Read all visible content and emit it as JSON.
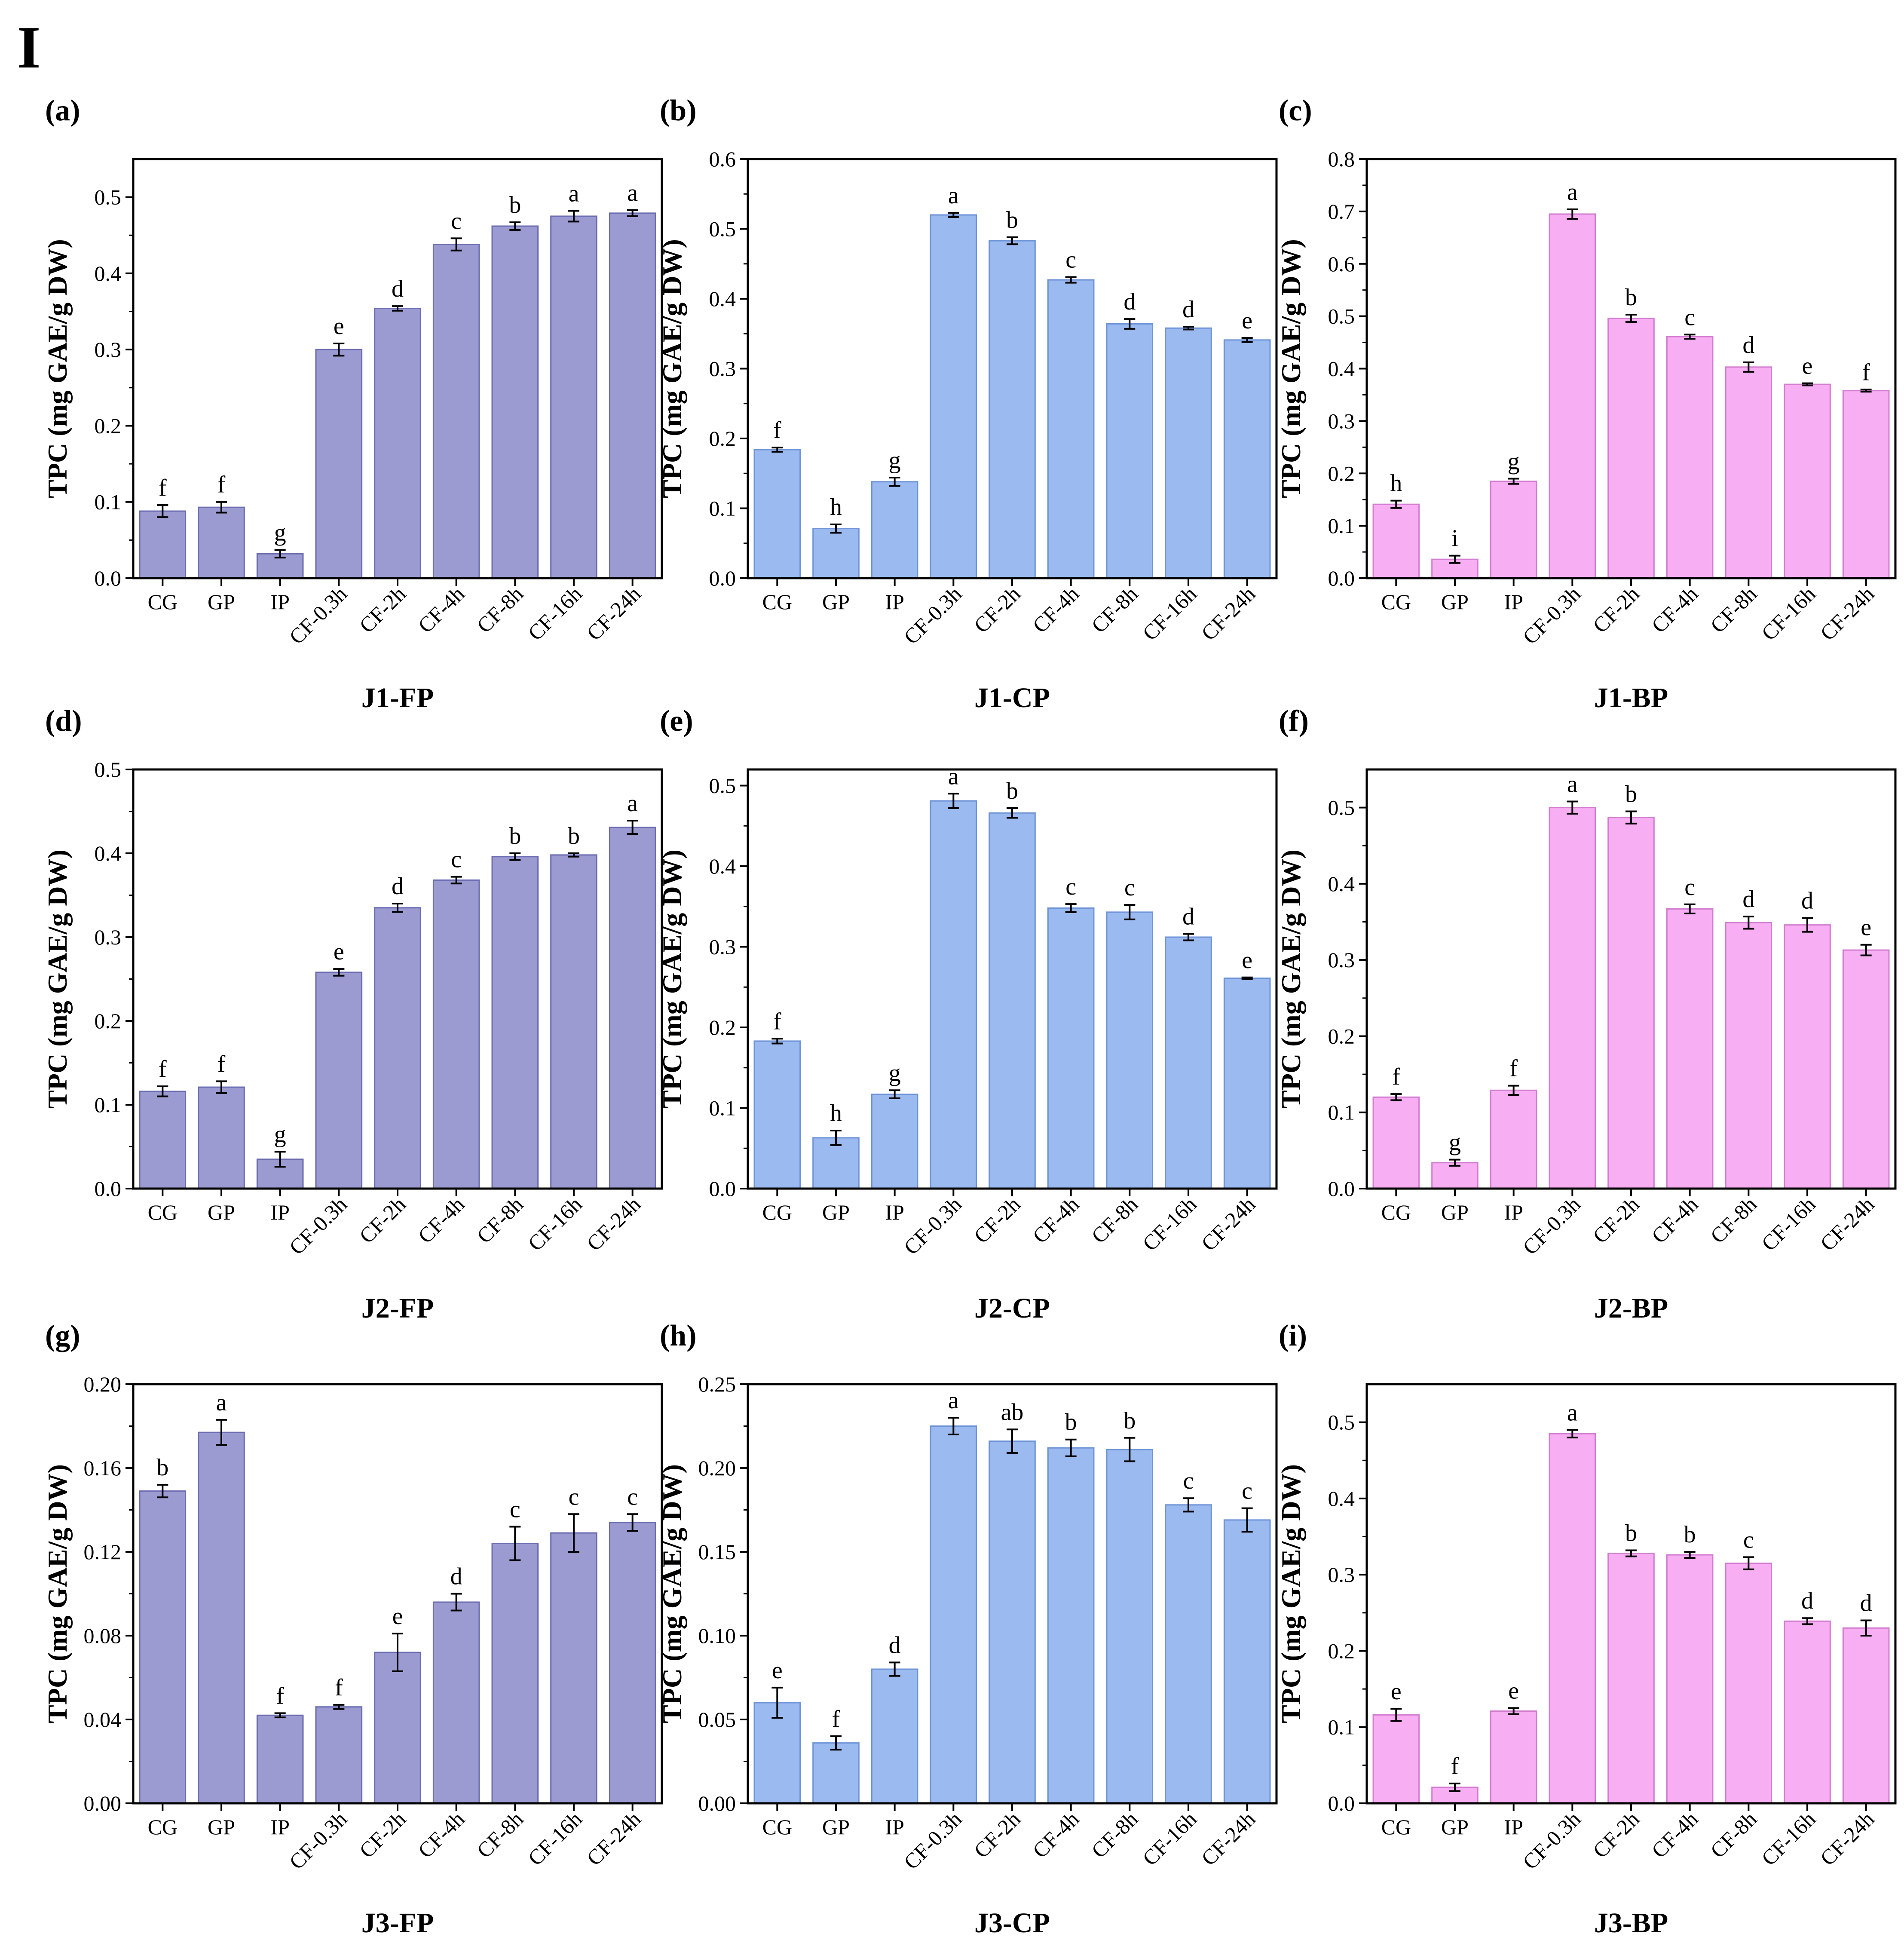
{
  "figure_label": "I",
  "colors": {
    "FP": "#9b9bd2",
    "CP": "#9bbaf0",
    "BP": "#f7aef2",
    "FP_edge": "#6b6bb0",
    "CP_edge": "#6e93d6",
    "BP_edge": "#d27ccf"
  },
  "chart_data": [
    {
      "id": "a",
      "panel_label": "(a)",
      "type": "bar",
      "title": "J1-FP",
      "color_key": "FP",
      "ylabel": "TPC (mg GAE/g DW)",
      "categories": [
        "CG",
        "GP",
        "IP",
        "CF-0.3h",
        "CF-2h",
        "CF-4h",
        "CF-8h",
        "CF-16h",
        "CF-24h"
      ],
      "values": [
        0.088,
        0.093,
        0.032,
        0.3,
        0.354,
        0.438,
        0.462,
        0.475,
        0.479
      ],
      "errors": [
        0.008,
        0.007,
        0.005,
        0.008,
        0.003,
        0.008,
        0.005,
        0.007,
        0.004
      ],
      "letters": [
        "f",
        "f",
        "g",
        "e",
        "d",
        "c",
        "b",
        "a",
        "a"
      ],
      "ylim": [
        0,
        0.55
      ],
      "yticks": [
        "0.0",
        "0.1",
        "0.2",
        "0.3",
        "0.4",
        "0.5"
      ],
      "ytick_values": [
        0,
        0.1,
        0.2,
        0.3,
        0.4,
        0.5
      ]
    },
    {
      "id": "b",
      "panel_label": "(b)",
      "type": "bar",
      "title": "J1-CP",
      "color_key": "CP",
      "ylabel": "TPC (mg GAE/g DW)",
      "categories": [
        "CG",
        "GP",
        "IP",
        "CF-0.3h",
        "CF-2h",
        "CF-4h",
        "CF-8h",
        "CF-16h",
        "CF-24h"
      ],
      "values": [
        0.184,
        0.071,
        0.138,
        0.52,
        0.483,
        0.427,
        0.364,
        0.358,
        0.341
      ],
      "errors": [
        0.003,
        0.006,
        0.006,
        0.003,
        0.005,
        0.004,
        0.007,
        0.002,
        0.003
      ],
      "letters": [
        "f",
        "h",
        "g",
        "a",
        "b",
        "c",
        "d",
        "d",
        "e"
      ],
      "ylim": [
        0,
        0.6
      ],
      "yticks": [
        "0.0",
        "0.1",
        "0.2",
        "0.3",
        "0.4",
        "0.5",
        "0.6"
      ],
      "ytick_values": [
        0,
        0.1,
        0.2,
        0.3,
        0.4,
        0.5,
        0.6
      ]
    },
    {
      "id": "c",
      "panel_label": "(c)",
      "type": "bar",
      "title": "J1-BP",
      "color_key": "BP",
      "ylabel": "TPC (mg GAE/g DW)",
      "categories": [
        "CG",
        "GP",
        "IP",
        "CF-0.3h",
        "CF-2h",
        "CF-4h",
        "CF-8h",
        "CF-16h",
        "CF-24h"
      ],
      "values": [
        0.141,
        0.036,
        0.185,
        0.695,
        0.496,
        0.461,
        0.403,
        0.37,
        0.358
      ],
      "errors": [
        0.007,
        0.007,
        0.005,
        0.009,
        0.007,
        0.004,
        0.009,
        0.002,
        0.002
      ],
      "letters": [
        "h",
        "i",
        "g",
        "a",
        "b",
        "c",
        "d",
        "e",
        "f"
      ],
      "ylim": [
        0,
        0.8
      ],
      "yticks": [
        "0.0",
        "0.1",
        "0.2",
        "0.3",
        "0.4",
        "0.5",
        "0.6",
        "0.7",
        "0.8"
      ],
      "ytick_values": [
        0,
        0.1,
        0.2,
        0.3,
        0.4,
        0.5,
        0.6,
        0.7,
        0.8
      ]
    },
    {
      "id": "d",
      "panel_label": "(d)",
      "type": "bar",
      "title": "J2-FP",
      "color_key": "FP",
      "ylabel": "TPC (mg GAE/g DW)",
      "categories": [
        "CG",
        "GP",
        "IP",
        "CF-0.3h",
        "CF-2h",
        "CF-4h",
        "CF-8h",
        "CF-16h",
        "CF-24h"
      ],
      "values": [
        0.116,
        0.121,
        0.035,
        0.258,
        0.335,
        0.368,
        0.396,
        0.398,
        0.431
      ],
      "errors": [
        0.006,
        0.007,
        0.009,
        0.004,
        0.005,
        0.004,
        0.004,
        0.002,
        0.008
      ],
      "letters": [
        "f",
        "f",
        "g",
        "e",
        "d",
        "c",
        "b",
        "b",
        "a"
      ],
      "ylim": [
        0,
        0.5
      ],
      "yticks": [
        "0.0",
        "0.1",
        "0.2",
        "0.3",
        "0.4",
        "0.5"
      ],
      "ytick_values": [
        0,
        0.1,
        0.2,
        0.3,
        0.4,
        0.5
      ]
    },
    {
      "id": "e",
      "panel_label": "(e)",
      "type": "bar",
      "title": "J2-CP",
      "color_key": "CP",
      "ylabel": "TPC (mg GAE/g DW)",
      "categories": [
        "CG",
        "GP",
        "IP",
        "CF-0.3h",
        "CF-2h",
        "CF-4h",
        "CF-8h",
        "CF-16h",
        "CF-24h"
      ],
      "values": [
        0.183,
        0.063,
        0.117,
        0.481,
        0.466,
        0.348,
        0.343,
        0.312,
        0.261
      ],
      "errors": [
        0.003,
        0.009,
        0.005,
        0.009,
        0.006,
        0.005,
        0.009,
        0.004,
        0.001
      ],
      "letters": [
        "f",
        "h",
        "g",
        "a",
        "b",
        "c",
        "c",
        "d",
        "e"
      ],
      "ylim": [
        0,
        0.52
      ],
      "yticks": [
        "0.0",
        "0.1",
        "0.2",
        "0.3",
        "0.4",
        "0.5"
      ],
      "ytick_values": [
        0,
        0.1,
        0.2,
        0.3,
        0.4,
        0.5
      ]
    },
    {
      "id": "f",
      "panel_label": "(f)",
      "type": "bar",
      "title": "J2-BP",
      "color_key": "BP",
      "ylabel": "TPC (mg GAE/g DW)",
      "categories": [
        "CG",
        "GP",
        "IP",
        "CF-0.3h",
        "CF-2h",
        "CF-4h",
        "CF-8h",
        "CF-16h",
        "CF-24h"
      ],
      "values": [
        0.12,
        0.034,
        0.129,
        0.5,
        0.487,
        0.367,
        0.349,
        0.346,
        0.313
      ],
      "errors": [
        0.004,
        0.004,
        0.006,
        0.008,
        0.008,
        0.006,
        0.008,
        0.009,
        0.007
      ],
      "letters": [
        "f",
        "g",
        "f",
        "a",
        "b",
        "c",
        "d",
        "d",
        "e"
      ],
      "ylim": [
        0,
        0.55
      ],
      "yticks": [
        "0.0",
        "0.1",
        "0.2",
        "0.3",
        "0.4",
        "0.5"
      ],
      "ytick_values": [
        0,
        0.1,
        0.2,
        0.3,
        0.4,
        0.5
      ]
    },
    {
      "id": "g",
      "panel_label": "(g)",
      "type": "bar",
      "title": "J3-FP",
      "color_key": "FP",
      "ylabel": "TPC (mg GAE/g DW)",
      "categories": [
        "CG",
        "GP",
        "IP",
        "CF-0.3h",
        "CF-2h",
        "CF-4h",
        "CF-8h",
        "CF-16h",
        "CF-24h"
      ],
      "values": [
        0.149,
        0.177,
        0.042,
        0.046,
        0.072,
        0.096,
        0.124,
        0.129,
        0.134
      ],
      "errors": [
        0.003,
        0.006,
        0.001,
        0.001,
        0.009,
        0.004,
        0.008,
        0.009,
        0.004
      ],
      "letters": [
        "b",
        "a",
        "f",
        "f",
        "e",
        "d",
        "c",
        "c",
        "c"
      ],
      "ylim": [
        0,
        0.2
      ],
      "yticks": [
        "0.00",
        "0.04",
        "0.08",
        "0.12",
        "0.16",
        "0.20"
      ],
      "ytick_values": [
        0,
        0.04,
        0.08,
        0.12,
        0.16,
        0.2
      ]
    },
    {
      "id": "h",
      "panel_label": "(h)",
      "type": "bar",
      "title": "J3-CP",
      "color_key": "CP",
      "ylabel": "TPC (mg GAE/g DW)",
      "categories": [
        "CG",
        "GP",
        "IP",
        "CF-0.3h",
        "CF-2h",
        "CF-4h",
        "CF-8h",
        "CF-16h",
        "CF-24h"
      ],
      "values": [
        0.06,
        0.036,
        0.08,
        0.225,
        0.216,
        0.212,
        0.211,
        0.178,
        0.169
      ],
      "errors": [
        0.009,
        0.004,
        0.004,
        0.005,
        0.007,
        0.005,
        0.007,
        0.004,
        0.007
      ],
      "letters": [
        "e",
        "f",
        "d",
        "a",
        "ab",
        "b",
        "b",
        "c",
        "c"
      ],
      "ylim": [
        0,
        0.25
      ],
      "yticks": [
        "0.00",
        "0.05",
        "0.10",
        "0.15",
        "0.20",
        "0.25"
      ],
      "ytick_values": [
        0,
        0.05,
        0.1,
        0.15,
        0.2,
        0.25
      ]
    },
    {
      "id": "i",
      "panel_label": "(i)",
      "type": "bar",
      "title": "J3-BP",
      "color_key": "BP",
      "ylabel": "TPC (mg GAE/g DW)",
      "categories": [
        "CG",
        "GP",
        "IP",
        "CF-0.3h",
        "CF-2h",
        "CF-4h",
        "CF-8h",
        "CF-16h",
        "CF-24h"
      ],
      "values": [
        0.116,
        0.021,
        0.121,
        0.485,
        0.328,
        0.326,
        0.315,
        0.239,
        0.23
      ],
      "errors": [
        0.008,
        0.005,
        0.004,
        0.005,
        0.004,
        0.004,
        0.008,
        0.004,
        0.01
      ],
      "letters": [
        "e",
        "f",
        "e",
        "a",
        "b",
        "b",
        "c",
        "d",
        "d"
      ],
      "ylim": [
        0,
        0.55
      ],
      "yticks": [
        "0.0",
        "0.1",
        "0.2",
        "0.3",
        "0.4",
        "0.5"
      ],
      "ytick_values": [
        0,
        0.1,
        0.2,
        0.3,
        0.4,
        0.5
      ]
    }
  ]
}
